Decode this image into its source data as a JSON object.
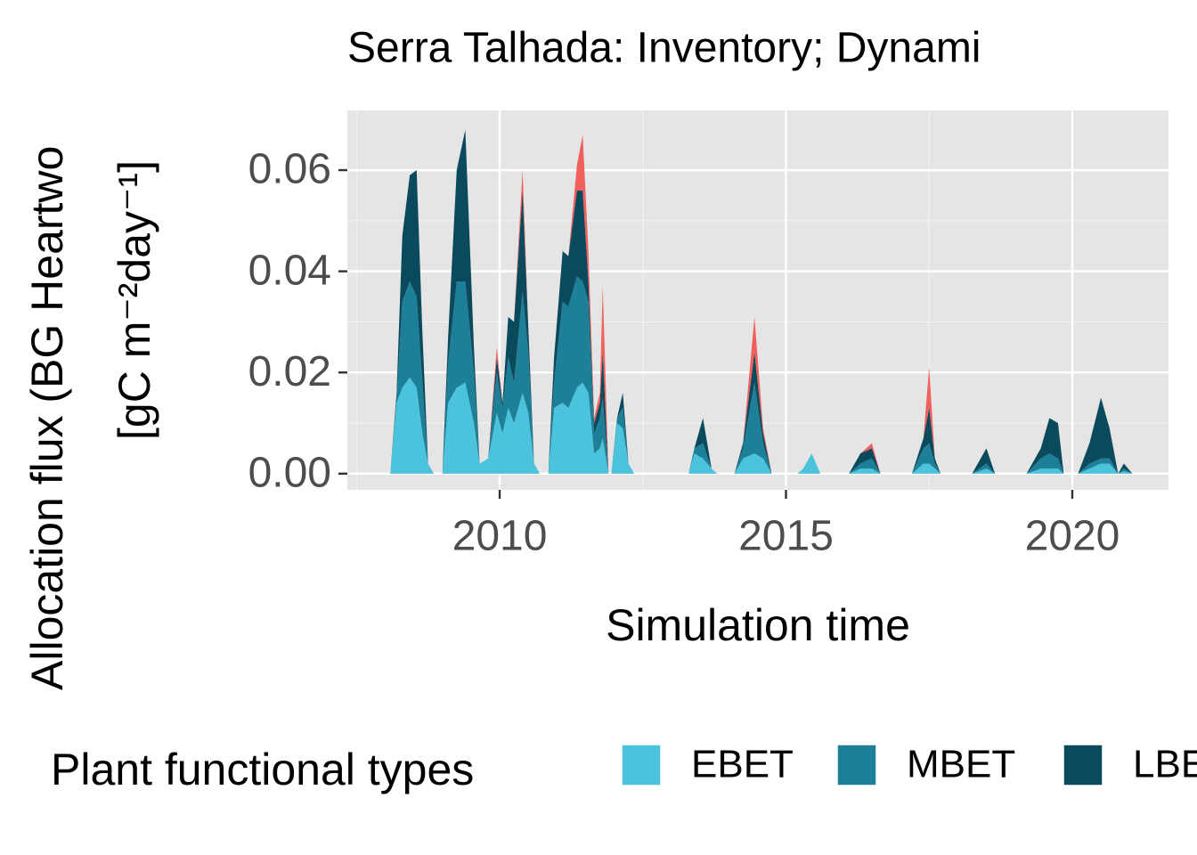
{
  "chart_data": {
    "type": "stacked_area",
    "title": "Serra Talhada: Inventory; Dynami",
    "x_label": "Simulation time",
    "y_label": [
      "Allocation flux (BG Heartwo",
      "[gC m⁻²day⁻¹]"
    ],
    "legend_title": "Plant functional types",
    "x": [
      2008.09,
      2008.2,
      2008.3,
      2008.43,
      2008.55,
      2008.65,
      2008.75,
      2008.85,
      2009.0,
      2009.1,
      2009.25,
      2009.4,
      2009.55,
      2009.65,
      2009.8,
      2009.95,
      2010.05,
      2010.15,
      2010.25,
      2010.4,
      2010.5,
      2010.6,
      2010.7,
      2010.85,
      2010.95,
      2011.1,
      2011.2,
      2011.35,
      2011.45,
      2011.55,
      2011.65,
      2011.75,
      2011.8,
      2011.9,
      2011.95,
      2012.05,
      2012.15,
      2012.25,
      2012.35,
      2013.3,
      2013.4,
      2013.55,
      2013.7,
      2013.8,
      2014.1,
      2014.25,
      2014.45,
      2014.6,
      2014.75,
      2015.2,
      2015.3,
      2015.45,
      2015.6,
      2016.1,
      2016.3,
      2016.5,
      2016.65,
      2017.2,
      2017.4,
      2017.5,
      2017.6,
      2017.7,
      2018.25,
      2018.5,
      2018.65,
      2019.2,
      2019.45,
      2019.6,
      2019.75,
      2019.85,
      2020.1,
      2020.3,
      2020.5,
      2020.65,
      2020.8,
      2020.9,
      2021.05
    ],
    "series": [
      {
        "name": "EBET",
        "color": "#4cc3dd",
        "values": [
          0,
          0.014,
          0.017,
          0.019,
          0.017,
          0.008,
          0.002,
          0,
          0,
          0.014,
          0.017,
          0.018,
          0.01,
          0.002,
          0.003,
          0.012,
          0.008,
          0.013,
          0.01,
          0.016,
          0.012,
          0.002,
          0,
          0,
          0.013,
          0.014,
          0.013,
          0.017,
          0.018,
          0.016,
          0.004,
          0.005,
          0.007,
          0,
          0,
          0.01,
          0.009,
          0.002,
          0,
          0,
          0.004,
          0.003,
          0.001,
          0,
          0,
          0.003,
          0.004,
          0.003,
          0,
          0,
          0.001,
          0.004,
          0,
          0,
          0.001,
          0.001,
          0,
          0,
          0.002,
          0.002,
          0.001,
          0,
          0,
          0.001,
          0,
          0,
          0.001,
          0.001,
          0.001,
          0,
          0,
          0.001,
          0.002,
          0.002,
          0,
          0.0005,
          0
        ]
      },
      {
        "name": "MBET",
        "color": "#1e7f98",
        "values": [
          0,
          0.001,
          0.017,
          0.019,
          0.018,
          0.01,
          0,
          0,
          0,
          0.008,
          0.021,
          0.02,
          0.01,
          0,
          0,
          0.008,
          0.005,
          0.01,
          0.008,
          0.02,
          0.012,
          0,
          0,
          0,
          0.005,
          0.02,
          0.02,
          0.022,
          0.02,
          0.018,
          0.004,
          0.006,
          0.008,
          0,
          0,
          0.001,
          0.004,
          0,
          0,
          0,
          0.001,
          0.003,
          0,
          0,
          0,
          0.002,
          0.014,
          0.003,
          0,
          0,
          0,
          0,
          0,
          0,
          0.001,
          0.002,
          0,
          0,
          0.003,
          0.004,
          0.001,
          0,
          0,
          0.001,
          0,
          0,
          0.002,
          0.003,
          0.002,
          0,
          0,
          0.001,
          0.001,
          0.001,
          0,
          0.0005,
          0
        ]
      },
      {
        "name": "LBE",
        "color": "#0a4a5c",
        "values": [
          0,
          0.001,
          0.013,
          0.021,
          0.025,
          0.01,
          0,
          0,
          0,
          0.005,
          0.022,
          0.03,
          0.005,
          0,
          0,
          0.003,
          0.001,
          0.008,
          0.012,
          0.02,
          0.005,
          0,
          0,
          0,
          0.005,
          0.01,
          0.01,
          0.017,
          0.018,
          0.004,
          0.002,
          0.003,
          0.009,
          0,
          0,
          0,
          0.003,
          0,
          0,
          0,
          0,
          0.005,
          0,
          0,
          0,
          0.001,
          0.006,
          0.002,
          0,
          0,
          0,
          0,
          0,
          0,
          0.002,
          0.002,
          0,
          0,
          0.002,
          0.007,
          0.001,
          0,
          0,
          0.003,
          0,
          0,
          0.002,
          0.007,
          0.007,
          0,
          0,
          0.004,
          0.012,
          0.006,
          0,
          0.001,
          0
        ]
      },
      {
        "color": "#f0605d",
        "values": [
          0,
          0,
          0,
          0,
          0,
          0,
          0,
          0,
          0,
          0,
          0,
          0,
          0,
          0,
          0,
          0.002,
          0,
          0,
          0,
          0.004,
          0,
          0,
          0,
          0,
          0,
          0,
          0,
          0.005,
          0.011,
          0.006,
          0.001,
          0.002,
          0.013,
          0,
          0,
          0,
          0,
          0,
          0,
          0,
          0,
          0,
          0,
          0,
          0,
          0,
          0.007,
          0.001,
          0,
          0,
          0,
          0,
          0,
          0,
          0,
          0.001,
          0,
          0,
          0,
          0.008,
          0,
          0,
          0,
          0,
          0,
          0,
          0,
          0,
          0,
          0,
          0,
          0,
          0,
          0,
          0,
          0,
          0
        ]
      }
    ],
    "xlim": [
      2007.34,
      2021.68
    ],
    "ylim": [
      -0.0032,
      0.0718
    ],
    "xticks": [
      2010,
      2015,
      2020
    ],
    "yticks": [
      {
        "value": 0,
        "label": "0.00"
      },
      {
        "value": 0.02,
        "label": "0.02"
      },
      {
        "value": 0.04,
        "label": "0.04"
      },
      {
        "value": 0.06,
        "label": "0.06"
      }
    ],
    "x_minor": [
      2007.5,
      2012.5,
      2017.5
    ],
    "y_minor": [
      0.01,
      0.03,
      0.05
    ],
    "grid": true,
    "legend": "bottom"
  }
}
